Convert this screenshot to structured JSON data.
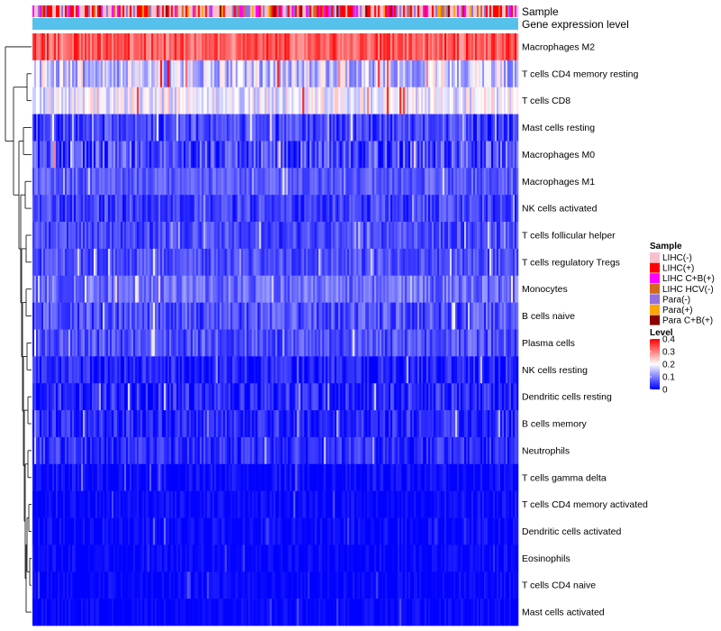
{
  "chart_data": {
    "type": "heatmap",
    "annotation_tracks": [
      {
        "name": "Sample",
        "label": "Sample"
      },
      {
        "name": "Gene expression level",
        "label": "Gene expression level",
        "color": "#56c1ea"
      }
    ],
    "rows": [
      {
        "name": "Macrophages M2",
        "mean": 0.33,
        "spread": 0.06
      },
      {
        "name": "T cells CD4 memory resting",
        "mean": 0.16,
        "spread": 0.08
      },
      {
        "name": "T cells CD8",
        "mean": 0.19,
        "spread": 0.06
      },
      {
        "name": "Mast cells resting",
        "mean": 0.05,
        "spread": 0.05
      },
      {
        "name": "Macrophages M0",
        "mean": 0.06,
        "spread": 0.07
      },
      {
        "name": "Macrophages M1",
        "mean": 0.07,
        "spread": 0.035
      },
      {
        "name": "NK cells activated",
        "mean": 0.05,
        "spread": 0.045
      },
      {
        "name": "T cells follicular helper",
        "mean": 0.055,
        "spread": 0.04
      },
      {
        "name": "T cells regulatory  Tregs",
        "mean": 0.06,
        "spread": 0.04
      },
      {
        "name": "Monocytes",
        "mean": 0.085,
        "spread": 0.045
      },
      {
        "name": "B cells naive",
        "mean": 0.06,
        "spread": 0.05
      },
      {
        "name": "Plasma cells",
        "mean": 0.06,
        "spread": 0.045
      },
      {
        "name": "NK cells resting",
        "mean": 0.025,
        "spread": 0.04
      },
      {
        "name": "Dendritic cells resting",
        "mean": 0.03,
        "spread": 0.05
      },
      {
        "name": "B cells memory",
        "mean": 0.03,
        "spread": 0.04
      },
      {
        "name": "Neutrophils",
        "mean": 0.035,
        "spread": 0.04
      },
      {
        "name": "T cells gamma delta",
        "mean": 0.005,
        "spread": 0.03
      },
      {
        "name": "T cells CD4 memory activated",
        "mean": 0.005,
        "spread": 0.025
      },
      {
        "name": "Dendritic cells activated",
        "mean": 0.005,
        "spread": 0.025
      },
      {
        "name": "Eosinophils",
        "mean": 0.004,
        "spread": 0.02
      },
      {
        "name": "T cells CD4 naive",
        "mean": 0.003,
        "spread": 0.02
      },
      {
        "name": "Mast cells activated",
        "mean": 0.003,
        "spread": 0.02
      }
    ],
    "color_scale": {
      "min": 0,
      "max": 0.4,
      "colors": [
        "#0000ff",
        "#ffffff",
        "#ff0000"
      ],
      "breaks": [
        0,
        0.2,
        0.4
      ]
    },
    "legends": [
      {
        "title": "Sample",
        "type": "categorical",
        "entries": [
          {
            "label": "LIHC(-)",
            "color": "#f7c0cb"
          },
          {
            "label": "LIHC(+)",
            "color": "#ff0000"
          },
          {
            "label": "LIHC C+B(+)",
            "color": "#ff00ff"
          },
          {
            "label": "LIHC HCV(-)",
            "color": "#d2691e"
          },
          {
            "label": "Para(-)",
            "color": "#9370db"
          },
          {
            "label": "Para(+)",
            "color": "#ffa500"
          },
          {
            "label": "Para C+B(+)",
            "color": "#8b0000"
          }
        ]
      },
      {
        "title": "Level",
        "type": "continuous",
        "ticks": [
          "0.4",
          "0.3",
          "0.2",
          "0.1",
          "0"
        ]
      }
    ]
  }
}
